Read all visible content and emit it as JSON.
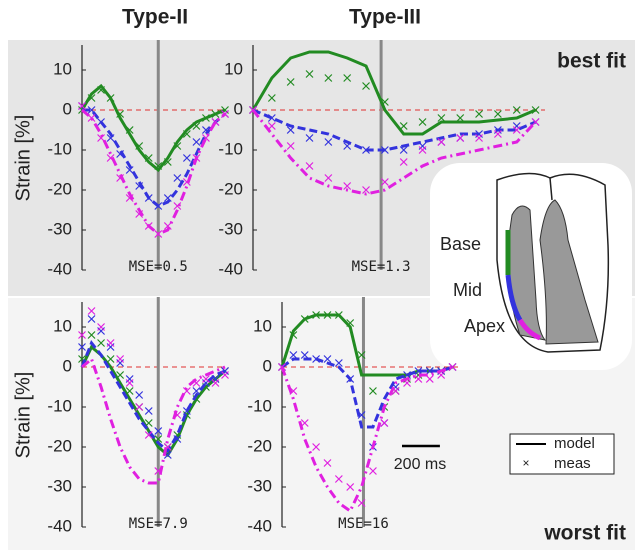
{
  "column_titles": [
    "Type-II",
    "Type-III"
  ],
  "row_labels": [
    "best fit",
    "worst fit"
  ],
  "y_label": "Strain [%]",
  "legend": [
    {
      "label": "model",
      "style": "line"
    },
    {
      "label": "meas",
      "style": "cross"
    }
  ],
  "scale_bar": {
    "value": 200,
    "label": "200 ms"
  },
  "heart": {
    "labels": [
      "Base",
      "Mid",
      "Apex"
    ],
    "colors": [
      "#228b22",
      "#3333dd",
      "#e020e0"
    ]
  },
  "chart_data": [
    {
      "type": "line",
      "annotation": "MSE=0.5",
      "xlim": [
        0,
        750
      ],
      "ylim": [
        -40,
        15
      ],
      "yticks": [
        10,
        0,
        -10,
        -20,
        -30,
        -40
      ],
      "vline": 400,
      "zero_line": true,
      "x": [
        0,
        50,
        100,
        150,
        200,
        250,
        300,
        350,
        400,
        450,
        500,
        550,
        600,
        650,
        700,
        750
      ],
      "series": [
        {
          "color": "#228b22",
          "style": "solid",
          "values": [
            0,
            4,
            6,
            3,
            -2,
            -6,
            -10,
            -13,
            -15,
            -12,
            -8,
            -5,
            -3,
            -2,
            -1,
            0
          ]
        },
        {
          "color": "#228b22",
          "style": "cross",
          "values": [
            0,
            3,
            5,
            3,
            -1,
            -5,
            -9,
            -12,
            -14,
            -13,
            -9,
            -6,
            -4,
            -2,
            -1,
            0
          ]
        },
        {
          "color": "#3333dd",
          "style": "dash",
          "values": [
            0,
            0,
            -3,
            -6,
            -10,
            -14,
            -18,
            -22,
            -24,
            -23,
            -20,
            -16,
            -11,
            -6,
            -3,
            -1
          ]
        },
        {
          "color": "#3333dd",
          "style": "cross",
          "values": [
            1,
            0,
            -3,
            -7,
            -11,
            -15,
            -19,
            -22,
            -24,
            -22,
            -17,
            -12,
            -8,
            -5,
            -3,
            -1
          ]
        },
        {
          "color": "#e020e0",
          "style": "dashdot",
          "values": [
            0,
            -2,
            -6,
            -11,
            -16,
            -21,
            -25,
            -29,
            -31,
            -30,
            -25,
            -19,
            -12,
            -7,
            -3,
            -1
          ]
        },
        {
          "color": "#e020e0",
          "style": "cross",
          "values": [
            1,
            -2,
            -7,
            -12,
            -17,
            -22,
            -26,
            -29,
            -31,
            -29,
            -24,
            -18,
            -12,
            -7,
            -3,
            -1
          ]
        }
      ]
    },
    {
      "type": "line",
      "annotation": "MSE=1.3",
      "xlim": [
        0,
        1550
      ],
      "ylim": [
        -40,
        15
      ],
      "yticks": [
        10,
        0,
        -10,
        -20,
        -30,
        -40
      ],
      "vline": 680,
      "zero_line": true,
      "x": [
        0,
        100,
        200,
        300,
        400,
        500,
        600,
        700,
        800,
        900,
        1000,
        1100,
        1200,
        1300,
        1400,
        1500
      ],
      "series": [
        {
          "color": "#228b22",
          "style": "solid",
          "values": [
            0,
            8,
            13,
            14.5,
            14.5,
            13,
            11,
            0,
            -6,
            -6,
            -3,
            -3,
            -3,
            -2.5,
            -2,
            0
          ]
        },
        {
          "color": "#228b22",
          "style": "cross",
          "values": [
            0,
            3,
            7,
            9,
            8,
            8,
            6,
            2,
            -4,
            -3,
            -2,
            -2,
            -1,
            -1,
            0,
            0
          ]
        },
        {
          "color": "#3333dd",
          "style": "dash",
          "values": [
            0,
            -2,
            -4,
            -5,
            -6,
            -8,
            -10,
            -10,
            -9,
            -8,
            -7,
            -6,
            -6,
            -5,
            -5,
            -3
          ]
        },
        {
          "color": "#3333dd",
          "style": "cross",
          "values": [
            0,
            -2,
            -5,
            -7,
            -8,
            -9,
            -10,
            -10,
            -10,
            -9,
            -8,
            -7,
            -6,
            -5,
            -4,
            -3
          ]
        },
        {
          "color": "#e020e0",
          "style": "dashdot",
          "values": [
            0,
            -6,
            -12,
            -17,
            -19,
            -20,
            -21,
            -20,
            -17,
            -14,
            -12,
            -11,
            -10,
            -9,
            -8,
            -3
          ]
        },
        {
          "color": "#e020e0",
          "style": "cross",
          "values": [
            0,
            -4,
            -9,
            -14,
            -17,
            -19,
            -20,
            -18,
            -13,
            -10,
            -8,
            -7,
            -7,
            -6,
            -5,
            -3
          ]
        }
      ]
    },
    {
      "type": "line",
      "annotation": "MSE=7.9",
      "xlim": [
        0,
        750
      ],
      "ylim": [
        -40,
        15
      ],
      "yticks": [
        10,
        0,
        -10,
        -20,
        -30,
        -40
      ],
      "vline": 400,
      "zero_line": true,
      "x": [
        0,
        50,
        100,
        150,
        200,
        250,
        300,
        350,
        400,
        450,
        500,
        550,
        600,
        650,
        700,
        750
      ],
      "series": [
        {
          "color": "#228b22",
          "style": "solid",
          "values": [
            0,
            5,
            3,
            0,
            -4,
            -8,
            -12,
            -16,
            -20,
            -22,
            -18,
            -12,
            -8,
            -5,
            -3,
            -1
          ]
        },
        {
          "color": "#228b22",
          "style": "cross",
          "values": [
            2,
            8,
            6,
            2,
            -2,
            -6,
            -10,
            -14,
            -18,
            -20,
            -17,
            -12,
            -8,
            -5,
            -3,
            -1
          ]
        },
        {
          "color": "#3333dd",
          "style": "dash",
          "values": [
            0,
            6,
            3,
            -1,
            -5,
            -9,
            -13,
            -16,
            -19,
            -21,
            -17,
            -11,
            -7,
            -4,
            -2,
            -1
          ]
        },
        {
          "color": "#3333dd",
          "style": "cross",
          "values": [
            5,
            12,
            9,
            5,
            1,
            -3,
            -7,
            -11,
            -16,
            -22,
            -18,
            -11,
            -6,
            -4,
            -3,
            -1
          ]
        },
        {
          "color": "#e020e0",
          "style": "dashdot",
          "values": [
            0,
            2,
            -5,
            -13,
            -20,
            -25,
            -28,
            -29,
            -29,
            -18,
            -10,
            -5,
            -3,
            -2,
            -1,
            0
          ]
        },
        {
          "color": "#e020e0",
          "style": "cross",
          "values": [
            8,
            14,
            10,
            6,
            2,
            -4,
            -10,
            -17,
            -26,
            -20,
            -12,
            -6,
            -4,
            -3,
            -4,
            -2
          ]
        }
      ]
    },
    {
      "type": "line",
      "annotation": "MSE=16",
      "xlim": [
        0,
        950
      ],
      "ylim": [
        -40,
        15
      ],
      "yticks": [
        10,
        0,
        -10,
        -20,
        -30,
        -40
      ],
      "vline": 430,
      "zero_line": true,
      "x": [
        0,
        60,
        120,
        180,
        240,
        300,
        360,
        420,
        480,
        540,
        600,
        660,
        720,
        780,
        840,
        900
      ],
      "series": [
        {
          "color": "#228b22",
          "style": "solid",
          "values": [
            0,
            9,
            12,
            13,
            13,
            13,
            10,
            -2,
            -2,
            -2,
            -2,
            -2,
            -1,
            -1,
            -1,
            0
          ]
        },
        {
          "color": "#228b22",
          "style": "cross",
          "values": [
            0,
            8,
            12,
            13,
            13,
            13,
            11,
            3,
            -6,
            -10,
            -6,
            -3,
            -2,
            -1,
            -1,
            0
          ]
        },
        {
          "color": "#3333dd",
          "style": "dash",
          "values": [
            0,
            2,
            2,
            2,
            1,
            0,
            -3,
            -15,
            -15,
            -8,
            -3,
            -2,
            -1,
            -1,
            -1,
            0
          ]
        },
        {
          "color": "#3333dd",
          "style": "cross",
          "values": [
            0,
            3,
            3,
            2,
            2,
            1,
            -3,
            -12,
            -20,
            -14,
            -5,
            -2,
            -1,
            -1,
            -1,
            0
          ]
        },
        {
          "color": "#e020e0",
          "style": "dashdot",
          "values": [
            0,
            -8,
            -18,
            -25,
            -30,
            -34,
            -36,
            -30,
            -20,
            -10,
            -4,
            -3,
            -2,
            -2,
            -1,
            0
          ]
        },
        {
          "color": "#e020e0",
          "style": "cross",
          "values": [
            0,
            -6,
            -14,
            -20,
            -24,
            -28,
            -30,
            -34,
            -26,
            -14,
            -6,
            -4,
            -3,
            -3,
            -2,
            0
          ]
        }
      ]
    }
  ]
}
